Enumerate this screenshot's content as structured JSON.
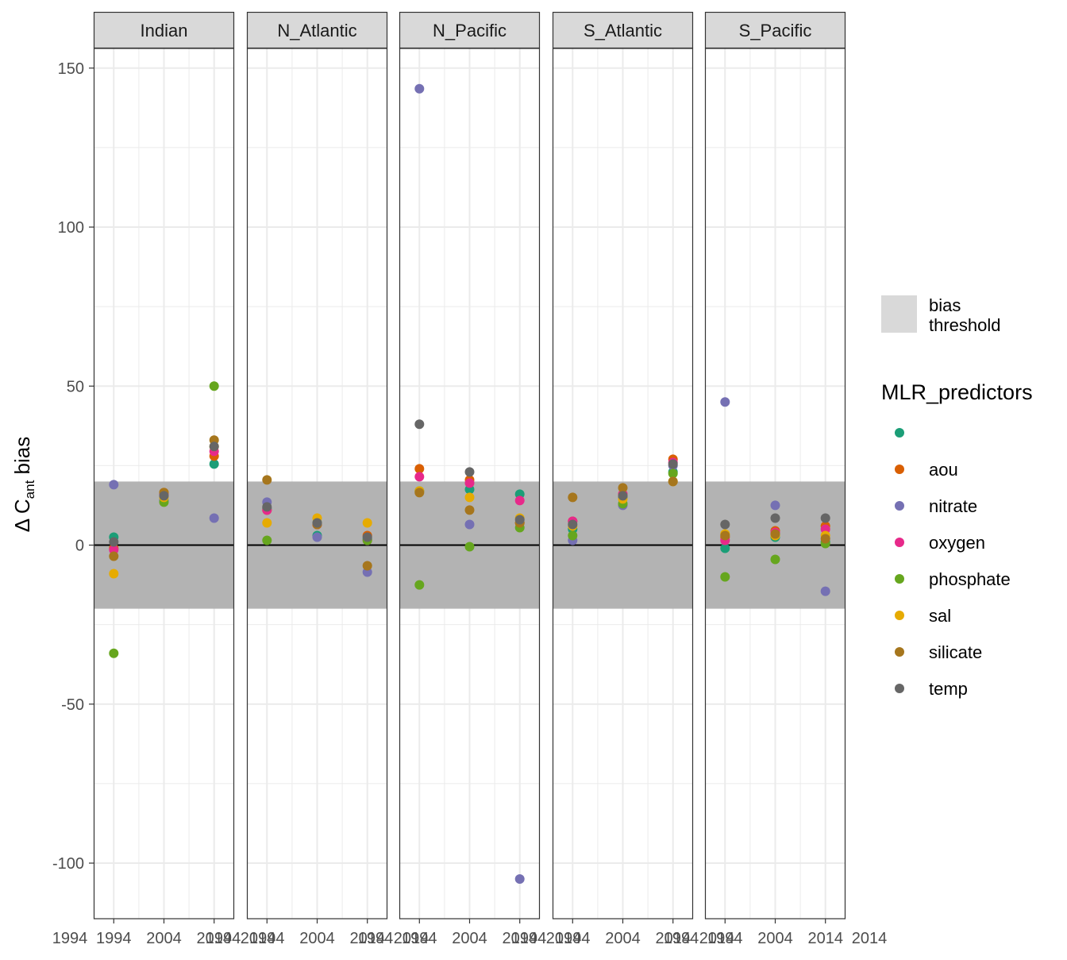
{
  "chart_data": {
    "type": "scatter",
    "facet_panels": [
      "Indian",
      "N_Atlantic",
      "N_Pacific",
      "S_Atlantic",
      "S_Pacific"
    ],
    "x_tick_labels": [
      "1994",
      "1994",
      "2004",
      "2004",
      "2014",
      "2014"
    ],
    "xlim": [
      1990,
      2018
    ],
    "y_ticks": [
      -100,
      -50,
      0,
      50,
      100,
      150
    ],
    "y_tick_labels": [
      "-100",
      "-50",
      "0",
      "50",
      "100",
      "150"
    ],
    "ylim": [
      -118,
      156
    ],
    "ylabel_symbol": "Δ C",
    "ylabel_sub": "ant",
    "ylabel_rest": " bias",
    "bias_threshold_band": [
      -20,
      20
    ],
    "reference_line_y": 0,
    "grid": true,
    "legend_position": "right",
    "legend": {
      "band_label_line1": "bias",
      "band_label_line2": "threshold",
      "title": "MLR_predictors"
    },
    "series": [
      {
        "name": "",
        "color": "#1b9e77",
        "points": [
          [
            0,
            1994,
            2.5
          ],
          [
            0,
            2004,
            14
          ],
          [
            0,
            2014,
            25.5
          ],
          [
            1,
            1994,
            11.5
          ],
          [
            1,
            2004,
            3
          ],
          [
            1,
            2014,
            2
          ],
          [
            2,
            1994,
            17
          ],
          [
            2,
            2004,
            17.5
          ],
          [
            2,
            2014,
            16
          ],
          [
            3,
            1994,
            5
          ],
          [
            3,
            2004,
            15
          ],
          [
            3,
            2014,
            23
          ],
          [
            4,
            1994,
            -1
          ],
          [
            4,
            2004,
            2.5
          ],
          [
            4,
            2014,
            1
          ]
        ]
      },
      {
        "name": "aou",
        "color": "#d95f02",
        "points": [
          [
            0,
            1994,
            -1
          ],
          [
            0,
            2004,
            16.5
          ],
          [
            0,
            2014,
            28
          ],
          [
            1,
            1994,
            11
          ],
          [
            1,
            2004,
            6.5
          ],
          [
            1,
            2014,
            3
          ],
          [
            2,
            1994,
            24
          ],
          [
            2,
            2004,
            20.5
          ],
          [
            2,
            2014,
            7
          ],
          [
            3,
            1994,
            7.5
          ],
          [
            3,
            2004,
            16
          ],
          [
            3,
            2014,
            27
          ],
          [
            4,
            1994,
            2.5
          ],
          [
            4,
            2004,
            4.5
          ],
          [
            4,
            2014,
            6
          ]
        ]
      },
      {
        "name": "nitrate",
        "color": "#7570b3",
        "points": [
          [
            0,
            1994,
            19
          ],
          [
            0,
            2004,
            14
          ],
          [
            0,
            2014,
            8.5
          ],
          [
            1,
            1994,
            13.5
          ],
          [
            1,
            2004,
            2.5
          ],
          [
            1,
            2014,
            -8.5
          ],
          [
            2,
            1994,
            143.5
          ],
          [
            2,
            2004,
            6.5
          ],
          [
            2,
            2014,
            -105
          ],
          [
            3,
            1994,
            1.5
          ],
          [
            3,
            2004,
            12.5
          ],
          [
            3,
            2014,
            25
          ],
          [
            4,
            1994,
            45
          ],
          [
            4,
            2004,
            12.5
          ],
          [
            4,
            2014,
            -14.5
          ]
        ]
      },
      {
        "name": "oxygen",
        "color": "#e7298a",
        "points": [
          [
            0,
            1994,
            -1.5
          ],
          [
            0,
            2004,
            16
          ],
          [
            0,
            2014,
            29.5
          ],
          [
            1,
            1994,
            11
          ],
          [
            1,
            2004,
            6.5
          ],
          [
            1,
            2014,
            1.5
          ],
          [
            2,
            1994,
            21.5
          ],
          [
            2,
            2004,
            19.5
          ],
          [
            2,
            2014,
            14
          ],
          [
            3,
            1994,
            7.5
          ],
          [
            3,
            2004,
            16
          ],
          [
            3,
            2014,
            26
          ],
          [
            4,
            1994,
            1.5
          ],
          [
            4,
            2004,
            4
          ],
          [
            4,
            2014,
            5
          ]
        ]
      },
      {
        "name": "phosphate",
        "color": "#66a61e",
        "points": [
          [
            0,
            1994,
            -34
          ],
          [
            0,
            2004,
            13.5
          ],
          [
            0,
            2014,
            50
          ],
          [
            1,
            1994,
            1.5
          ],
          [
            1,
            2004,
            7
          ],
          [
            1,
            2014,
            1.5
          ],
          [
            2,
            1994,
            -12.5
          ],
          [
            2,
            2004,
            -0.5
          ],
          [
            2,
            2014,
            5.5
          ],
          [
            3,
            1994,
            3
          ],
          [
            3,
            2004,
            13
          ],
          [
            3,
            2014,
            22.5
          ],
          [
            4,
            1994,
            -10
          ],
          [
            4,
            2004,
            -4.5
          ],
          [
            4,
            2014,
            0.5
          ]
        ]
      },
      {
        "name": "sal",
        "color": "#e6ab02",
        "points": [
          [
            0,
            1994,
            -9
          ],
          [
            0,
            2004,
            15
          ],
          [
            0,
            2014,
            31
          ],
          [
            1,
            1994,
            7
          ],
          [
            1,
            2004,
            8.5
          ],
          [
            1,
            2014,
            7
          ],
          [
            2,
            1994,
            17
          ],
          [
            2,
            2004,
            15
          ],
          [
            2,
            2014,
            8.5
          ],
          [
            3,
            1994,
            6
          ],
          [
            3,
            2004,
            14.5
          ],
          [
            3,
            2014,
            20
          ],
          [
            4,
            1994,
            3.5
          ],
          [
            4,
            2004,
            3
          ],
          [
            4,
            2014,
            3
          ]
        ]
      },
      {
        "name": "silicate",
        "color": "#a6761d",
        "points": [
          [
            0,
            1994,
            -3.5
          ],
          [
            0,
            2004,
            16.5
          ],
          [
            0,
            2014,
            33
          ],
          [
            1,
            1994,
            20.5
          ],
          [
            1,
            2004,
            6.5
          ],
          [
            1,
            2014,
            -6.5
          ],
          [
            2,
            1994,
            16.5
          ],
          [
            2,
            2004,
            11
          ],
          [
            2,
            2014,
            7
          ],
          [
            3,
            1994,
            15
          ],
          [
            3,
            2004,
            18
          ],
          [
            3,
            2014,
            20
          ],
          [
            4,
            1994,
            3
          ],
          [
            4,
            2004,
            3.5
          ],
          [
            4,
            2014,
            2
          ]
        ]
      },
      {
        "name": "temp",
        "color": "#666666",
        "points": [
          [
            0,
            1994,
            1
          ],
          [
            0,
            2004,
            15.5
          ],
          [
            0,
            2014,
            31
          ],
          [
            1,
            1994,
            12
          ],
          [
            1,
            2004,
            7
          ],
          [
            1,
            2014,
            2.5
          ],
          [
            2,
            1994,
            38
          ],
          [
            2,
            2004,
            23
          ],
          [
            2,
            2014,
            8
          ],
          [
            3,
            1994,
            6.5
          ],
          [
            3,
            2004,
            15.5
          ],
          [
            3,
            2014,
            25.5
          ],
          [
            4,
            1994,
            6.5
          ],
          [
            4,
            2004,
            8.5
          ],
          [
            4,
            2014,
            8.5
          ]
        ]
      }
    ]
  }
}
